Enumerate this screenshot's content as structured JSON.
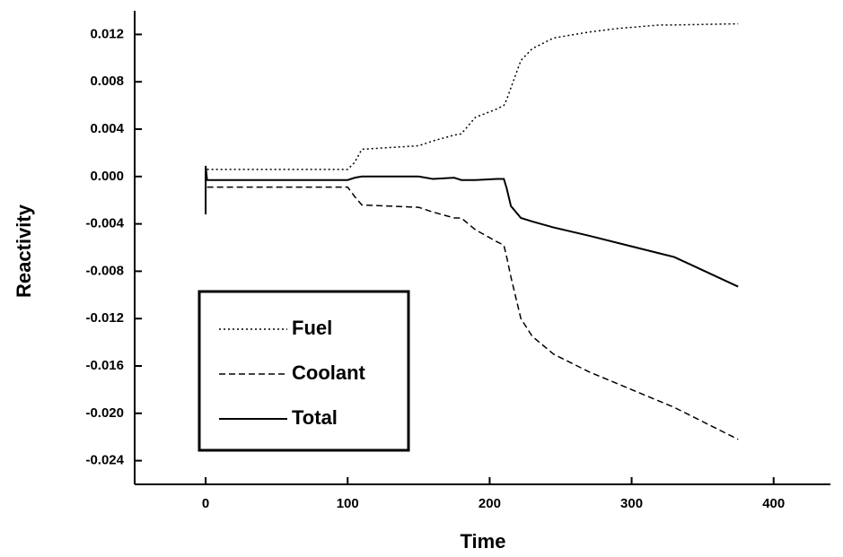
{
  "chart_data": {
    "type": "line",
    "x_label": "Time",
    "y_label": "Reactivity",
    "x": [
      0,
      0,
      1,
      100,
      105,
      110,
      150,
      160,
      175,
      180,
      190,
      205,
      210,
      212,
      215,
      222,
      230,
      245,
      270,
      290,
      320,
      330,
      375
    ],
    "series": [
      {
        "name": "Fuel",
        "color": "#000000",
        "dash": "dotted",
        "values": [
          null,
          null,
          0.0006,
          0.0006,
          0.0012,
          0.0023,
          0.0026,
          0.003,
          0.0035,
          0.0036,
          0.005,
          0.0057,
          0.006,
          0.0065,
          0.0075,
          0.0098,
          0.0108,
          0.0117,
          0.0122,
          0.0125,
          0.0128,
          0.0128,
          0.0129
        ]
      },
      {
        "name": "Coolant",
        "color": "#000000",
        "dash": "dashed",
        "values": [
          null,
          null,
          -0.0009,
          -0.0009,
          -0.0017,
          -0.0024,
          -0.0026,
          -0.003,
          -0.0035,
          -0.0035,
          -0.0045,
          -0.0055,
          -0.0058,
          -0.0068,
          -0.0085,
          -0.012,
          -0.0135,
          -0.015,
          -0.0165,
          -0.0175,
          -0.019,
          -0.0195,
          -0.0222
        ]
      },
      {
        "name": "Total",
        "color": "#000000",
        "dash": "solid",
        "values": [
          -0.0032,
          0.0009,
          -0.0003,
          -0.0003,
          -0.0001,
          0,
          0,
          -0.0002,
          -0.0001,
          -0.0003,
          -0.0003,
          -0.0002,
          -0.0002,
          -0.001,
          -0.0025,
          -0.0035,
          -0.0038,
          -0.0043,
          -0.005,
          -0.0056,
          -0.0065,
          -0.0068,
          -0.0093
        ]
      }
    ],
    "xlim": [
      -50,
      440
    ],
    "xticks": [
      0,
      100,
      200,
      300,
      400
    ],
    "ylim": [
      -0.026,
      0.014
    ],
    "yticks": [
      0.012,
      0.008,
      0.004,
      {
        "value": 0,
        "label": "0.000"
      },
      -0.004,
      -0.008,
      -0.012,
      -0.016,
      {
        "value": -0.02,
        "label": "-0.020"
      },
      -0.024
    ],
    "grid": false,
    "legend": "lower left"
  }
}
